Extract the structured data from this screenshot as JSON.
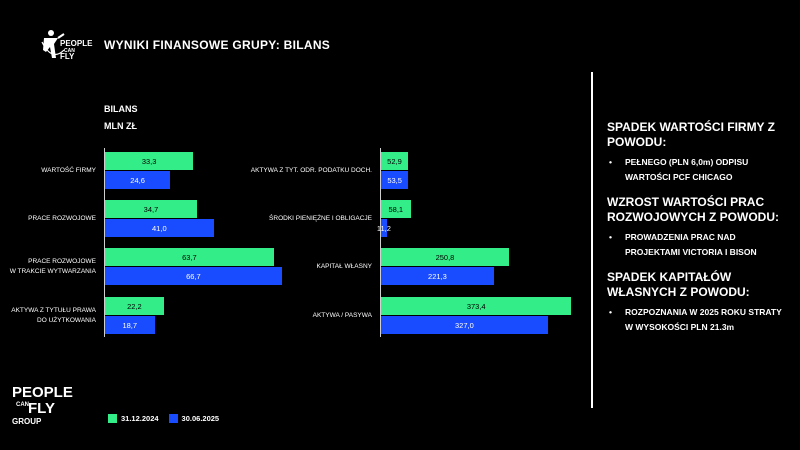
{
  "header": {
    "title": "WYNIKI FINANSOWE GRUPY: BILANS"
  },
  "logo_top": {
    "line1": "PEOPLE",
    "line2": "CAN",
    "line3": "FLY"
  },
  "logo_bottom": {
    "line1": "PEOPLE",
    "line2": "CAN",
    "line3": "FLY",
    "line4": "GROUP"
  },
  "chart_labels": {
    "title": "BILANS",
    "unit": "MLN ZŁ"
  },
  "chart_data": [
    {
      "type": "bar",
      "orientation": "horizontal",
      "title": "BILANS",
      "unit": "MLN ZŁ",
      "categories": [
        "WARTOŚĆ FIRMY",
        "PRACE ROZWOJOWE",
        "PRACE ROZWOJOWE W TRAKCIE WYTWARZANIA",
        "AKTYWA Z TYTUŁU PRAWA DO UŻYTKOWANIA"
      ],
      "category_lines": [
        [
          "WARTOŚĆ FIRMY"
        ],
        [
          "PRACE ROZWOJOWE"
        ],
        [
          "PRACE ROZWOJOWE",
          "W TRAKCIE WYTWARZANIA"
        ],
        [
          "AKTYWA Z TYTUŁU PRAWA",
          "DO UŻYTKOWANIA"
        ]
      ],
      "series": [
        {
          "name": "31.12.2024",
          "values": [
            33.3,
            34.7,
            63.7,
            22.2
          ],
          "labels": [
            "33,3",
            "34,7",
            "63,7",
            "22,2"
          ]
        },
        {
          "name": "30.06.2025",
          "values": [
            24.6,
            41.0,
            66.7,
            18.7
          ],
          "labels": [
            "24,6",
            "41,0",
            "66,7",
            "18,7"
          ]
        }
      ]
    },
    {
      "type": "bar",
      "orientation": "horizontal",
      "categories": [
        "AKTYWA Z TYT. ODR. PODATKU DOCH.",
        "ŚRODKI PIENIĘŻNE I OBLIGACJE",
        "KAPITAŁ WŁASNY",
        "AKTYWA / PASYWA"
      ],
      "category_lines": [
        [
          "AKTYWA Z TYT. ODR. PODATKU DOCH."
        ],
        [
          "ŚRODKI PIENIĘŻNE I OBLIGACJE"
        ],
        [
          "KAPITAŁ WŁASNY"
        ],
        [
          "AKTYWA / PASYWA"
        ]
      ],
      "series": [
        {
          "name": "31.12.2024",
          "values": [
            52.9,
            58.1,
            250.8,
            373.4
          ],
          "labels": [
            "52,9",
            "58,1",
            "250,8",
            "373,4"
          ]
        },
        {
          "name": "30.06.2025",
          "values": [
            53.5,
            11.2,
            221.3,
            327.0
          ],
          "labels": [
            "53,5",
            "11,2",
            "221,3",
            "327,0"
          ]
        }
      ]
    }
  ],
  "legend": [
    {
      "label": "31.12.2024",
      "color": "#33ee88"
    },
    {
      "label": "30.06.2025",
      "color": "#1a4cff"
    }
  ],
  "notes": {
    "sections": [
      {
        "heading": "SPADEK WARTOŚCI FIRMY Z POWODU:",
        "bullet": "•",
        "item": "PEŁNEGO (PLN 6,0m) ODPISU WARTOŚCI PCF CHICAGO"
      },
      {
        "heading": "WZROST WARTOŚCI PRAC ROZWOJOWYCH Z POWODU:",
        "bullet": "•",
        "item": "PROWADZENIA PRAC NAD PROJEKTAMI VICTORIA I BISON"
      },
      {
        "heading": "SPADEK KAPITAŁÓW WŁASNYCH Z POWODU:",
        "bullet": "•",
        "item": "ROZPOZNANIA W 2025 ROKU STRATY W WYSOKOŚCI PLN 21.3m"
      }
    ]
  }
}
